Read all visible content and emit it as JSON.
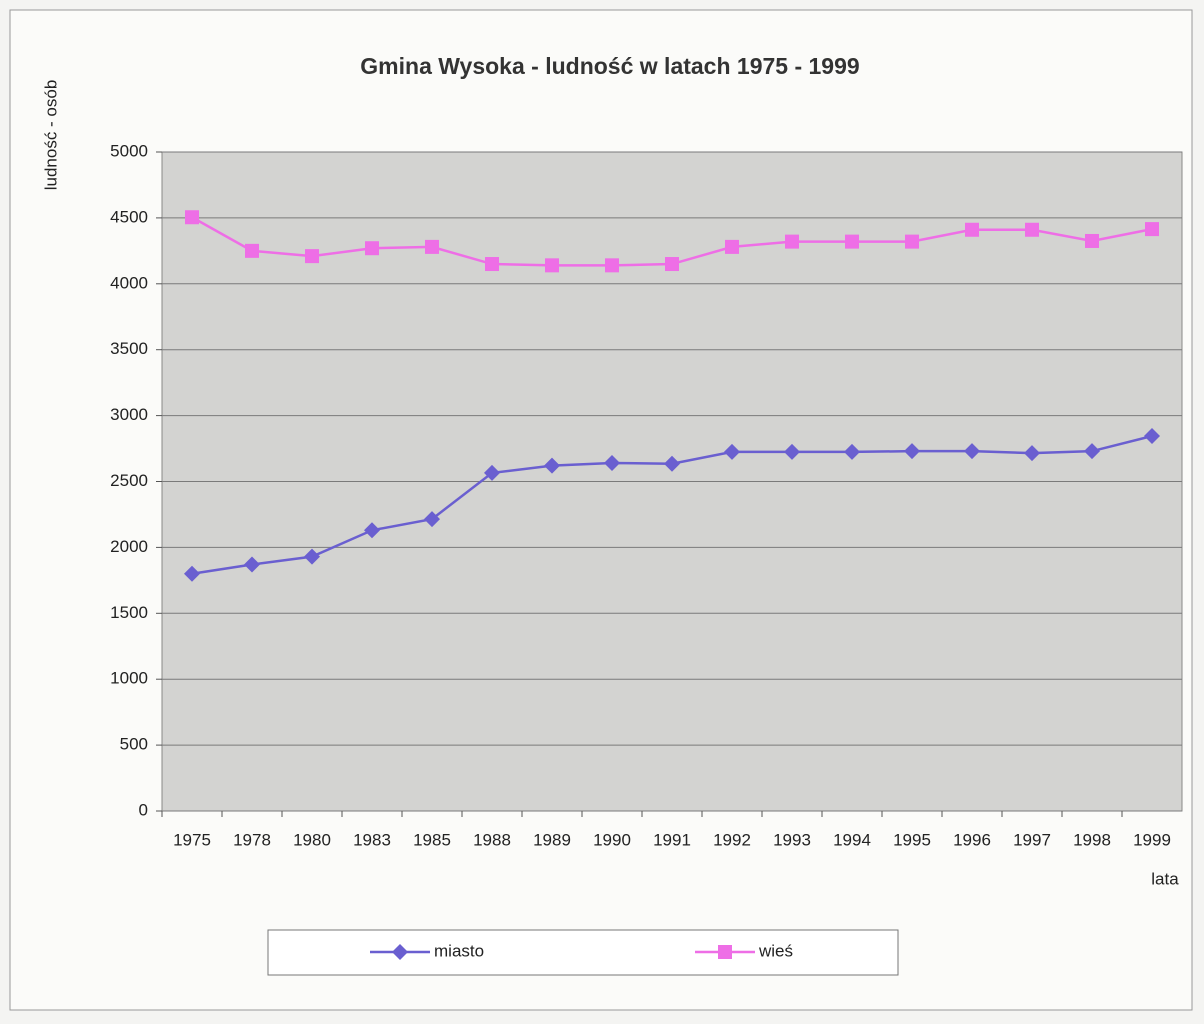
{
  "chart_data": {
    "type": "line",
    "title": "Gmina Wysoka - ludność w latach 1975 - 1999",
    "y_label": "ludność - osób",
    "x_label": "lata",
    "categories": [
      "1975",
      "1978",
      "1980",
      "1983",
      "1985",
      "1988",
      "1989",
      "1990",
      "1991",
      "1992",
      "1993",
      "1994",
      "1995",
      "1996",
      "1997",
      "1998",
      "1999"
    ],
    "series": [
      {
        "name": "miasto",
        "color": "#6a5fd0",
        "values": [
          1800,
          1870,
          1930,
          2130,
          2215,
          2565,
          2620,
          2640,
          2635,
          2725,
          2725,
          2725,
          2730,
          2730,
          2715,
          2730,
          2845
        ]
      },
      {
        "name": "wieś",
        "color": "#ee6ee6",
        "values": [
          4505,
          4250,
          4210,
          4270,
          4280,
          4150,
          4140,
          4140,
          4150,
          4280,
          4320,
          4320,
          4320,
          4410,
          4410,
          4325,
          4415
        ]
      }
    ],
    "ylim": [
      0,
      5000
    ],
    "yticks": [
      0,
      500,
      1000,
      1500,
      2000,
      2500,
      3000,
      3500,
      4000,
      4500,
      5000
    ],
    "grid": true,
    "legend": "bottom"
  }
}
